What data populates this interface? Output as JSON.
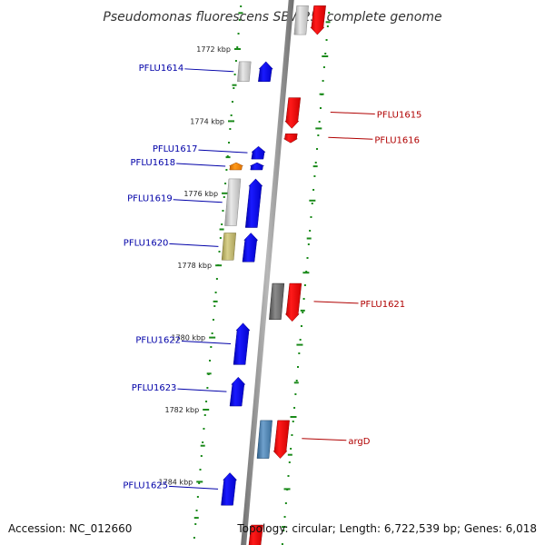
{
  "title": "Pseudomonas fluorescens SBW25, complete genome",
  "footer": {
    "accession": "Accession: NC_012660",
    "topology": "Topology: circular; Length: 6,722,539 bp; Genes: 6,018"
  },
  "colors": {
    "backbone": "#8a8a8a",
    "tick": "#1a8a1a",
    "forward_gene": "#0000ee",
    "reverse_gene": "#ee0000",
    "label_left": "#0000a8",
    "label_right": "#b00000"
  },
  "scale": {
    "unit": "kbp",
    "labels": [
      "1772 kbp",
      "1774 kbp",
      "1776 kbp",
      "1778 kbp",
      "1780 kbp",
      "1782 kbp",
      "1784 kbp"
    ]
  },
  "genes": [
    {
      "side": "right",
      "label": "",
      "color": "red",
      "kbp_start": 1770.8,
      "kbp_end": 1771.6
    },
    {
      "side": "right",
      "label": "",
      "color": "grey",
      "kbp_start": 1770.8,
      "kbp_end": 1771.6
    },
    {
      "side": "left",
      "label": "PFLU1614",
      "color": "grey",
      "kbp_start": 1772.35,
      "kbp_end": 1772.9
    },
    {
      "side": "left",
      "label": "",
      "color": "blue",
      "kbp_start": 1772.35,
      "kbp_end": 1772.9
    },
    {
      "side": "right",
      "label": "PFLU1615",
      "color": "red",
      "kbp_start": 1773.35,
      "kbp_end": 1774.2
    },
    {
      "side": "right",
      "label": "PFLU1616",
      "color": "red",
      "kbp_start": 1774.35,
      "kbp_end": 1774.6
    },
    {
      "side": "left",
      "label": "PFLU1617",
      "color": "blue",
      "kbp_start": 1774.7,
      "kbp_end": 1775.05
    },
    {
      "side": "left",
      "label": "PFLU1618",
      "color": "orange",
      "kbp_start": 1775.15,
      "kbp_end": 1775.35
    },
    {
      "side": "left",
      "label": "",
      "color": "blue",
      "kbp_start": 1775.15,
      "kbp_end": 1775.35
    },
    {
      "side": "left",
      "label": "PFLU1619",
      "color": "grey",
      "kbp_start": 1775.6,
      "kbp_end": 1776.9
    },
    {
      "side": "left",
      "label": "",
      "color": "blue",
      "kbp_start": 1775.6,
      "kbp_end": 1776.95
    },
    {
      "side": "left",
      "label": "PFLU1620",
      "color": "olive",
      "kbp_start": 1777.1,
      "kbp_end": 1777.85
    },
    {
      "side": "left",
      "label": "",
      "color": "blue",
      "kbp_start": 1777.1,
      "kbp_end": 1777.9
    },
    {
      "side": "right",
      "label": "PFLU1621",
      "color": "red",
      "kbp_start": 1778.5,
      "kbp_end": 1779.55
    },
    {
      "side": "right",
      "label": "",
      "color": "darkgrey",
      "kbp_start": 1778.5,
      "kbp_end": 1779.5
    },
    {
      "side": "left",
      "label": "PFLU1622",
      "color": "blue",
      "kbp_start": 1779.6,
      "kbp_end": 1780.75
    },
    {
      "side": "left",
      "label": "PFLU1623",
      "color": "blue",
      "kbp_start": 1781.1,
      "kbp_end": 1781.9
    },
    {
      "side": "right",
      "label": "argD",
      "color": "red",
      "kbp_start": 1782.3,
      "kbp_end": 1783.35
    },
    {
      "side": "right",
      "label": "",
      "color": "steelblue",
      "kbp_start": 1782.3,
      "kbp_end": 1783.35
    },
    {
      "side": "left",
      "label": "PFLU1625",
      "color": "blue",
      "kbp_start": 1783.75,
      "kbp_end": 1784.65
    },
    {
      "side": "right",
      "label": "",
      "color": "red",
      "kbp_start": 1785.2,
      "kbp_end": 1786.0
    }
  ]
}
